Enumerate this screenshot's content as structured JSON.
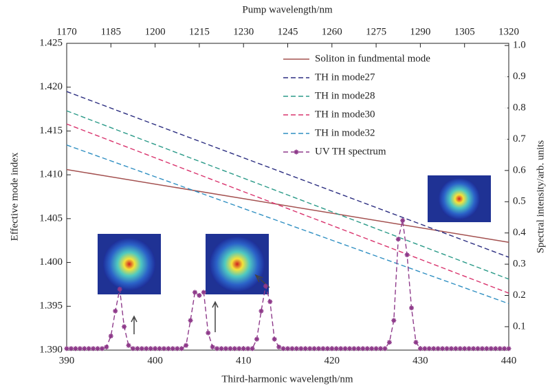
{
  "chart_data": {
    "type": "line",
    "xlabel": "Third-harmonic wavelength/nm",
    "x2label": "Pump wavelength/nm",
    "ylabel": "Effective mode index",
    "y2label": "Spectral intensity/arb. units",
    "xlim": [
      390,
      440
    ],
    "xticks": [
      390,
      400,
      410,
      420,
      430,
      440
    ],
    "x2lim": [
      1170,
      1320
    ],
    "x2ticks": [
      1170,
      1185,
      1200,
      1215,
      1230,
      1245,
      1260,
      1275,
      1290,
      1305,
      1320
    ],
    "ylim": [
      1.39,
      1.425
    ],
    "yticks": [
      {
        "value": 1.39,
        "label": "1.390"
      },
      1.395,
      {
        "value": 1.4,
        "label": "1.400"
      },
      1.405,
      {
        "value": 1.41,
        "label": "1.410"
      },
      1.415,
      {
        "value": 1.42,
        "label": "1.420"
      },
      1.425
    ],
    "y2lim": [
      0.025,
      1.007
    ],
    "y2ticks": [
      0.1,
      0.2,
      0.3,
      0.4,
      0.5,
      0.6,
      0.7,
      0.8,
      0.9,
      {
        "value": 1.0,
        "label": "1.0"
      }
    ],
    "legend": "upper right",
    "series": [
      {
        "name": "Soliton in fundmental mode",
        "color": "#a3504f",
        "style": "solid",
        "x": [
          390,
          440
        ],
        "values": [
          1.4106,
          1.4023
        ]
      },
      {
        "name": "TH in mode27",
        "color": "#2b2d80",
        "style": "dashed",
        "x": [
          390,
          440
        ],
        "values": [
          1.4195,
          1.4006
        ]
      },
      {
        "name": "TH in mode28",
        "color": "#2a9a88",
        "style": "dashed",
        "x": [
          390,
          440
        ],
        "values": [
          1.4173,
          1.3981
        ]
      },
      {
        "name": "TH in mode30",
        "color": "#d9336d",
        "style": "dashed",
        "x": [
          390,
          440
        ],
        "values": [
          1.4158,
          1.3965
        ]
      },
      {
        "name": "TH in mode32",
        "color": "#2f8fc2",
        "style": "dashed",
        "x": [
          390,
          440
        ],
        "values": [
          1.4134,
          1.3953
        ]
      },
      {
        "name": "UV TH spectrum",
        "color": "#8e3a8a",
        "style": "dashed-star",
        "axis": "y2",
        "x": [
          390,
          390.5,
          391,
          391.5,
          392,
          392.5,
          393,
          393.5,
          394,
          394.5,
          395,
          395.5,
          396,
          396.5,
          397,
          397.5,
          398,
          398.5,
          399,
          399.5,
          400,
          400.5,
          401,
          401.5,
          402,
          402.5,
          403,
          403.5,
          404,
          404.5,
          405,
          405.5,
          406,
          406.5,
          407,
          407.5,
          408,
          408.5,
          409,
          409.5,
          410,
          410.5,
          411,
          411.5,
          412,
          412.5,
          413,
          413.5,
          414,
          414.5,
          415,
          415.5,
          416,
          416.5,
          417,
          417.5,
          418,
          418.5,
          419,
          419.5,
          420,
          420.5,
          421,
          421.5,
          422,
          422.5,
          423,
          423.5,
          424,
          424.5,
          425,
          425.5,
          426,
          426.5,
          427,
          427.5,
          428,
          428.5,
          429,
          429.5,
          430,
          430.5,
          431,
          431.5,
          432,
          432.5,
          433,
          433.5,
          434,
          434.5,
          435,
          435.5,
          436,
          436.5,
          437,
          437.5,
          438,
          438.5,
          439,
          439.5,
          440
        ],
        "values": [
          0.03,
          0.03,
          0.03,
          0.03,
          0.03,
          0.03,
          0.03,
          0.03,
          0.03,
          0.035,
          0.07,
          0.15,
          0.22,
          0.1,
          0.04,
          0.03,
          0.03,
          0.03,
          0.03,
          0.03,
          0.03,
          0.03,
          0.03,
          0.03,
          0.03,
          0.03,
          0.03,
          0.04,
          0.12,
          0.21,
          0.2,
          0.21,
          0.08,
          0.035,
          0.03,
          0.03,
          0.03,
          0.03,
          0.03,
          0.03,
          0.03,
          0.03,
          0.03,
          0.06,
          0.15,
          0.23,
          0.18,
          0.06,
          0.035,
          0.03,
          0.03,
          0.03,
          0.03,
          0.03,
          0.03,
          0.03,
          0.03,
          0.03,
          0.03,
          0.03,
          0.03,
          0.03,
          0.03,
          0.03,
          0.03,
          0.03,
          0.03,
          0.03,
          0.03,
          0.03,
          0.03,
          0.03,
          0.03,
          0.05,
          0.12,
          0.38,
          0.44,
          0.33,
          0.16,
          0.05,
          0.03,
          0.03,
          0.03,
          0.03,
          0.03,
          0.03,
          0.03,
          0.03,
          0.03,
          0.03,
          0.03,
          0.03,
          0.03,
          0.03,
          0.03,
          0.03,
          0.03,
          0.03,
          0.03,
          0.03,
          0.03
        ]
      }
    ]
  }
}
